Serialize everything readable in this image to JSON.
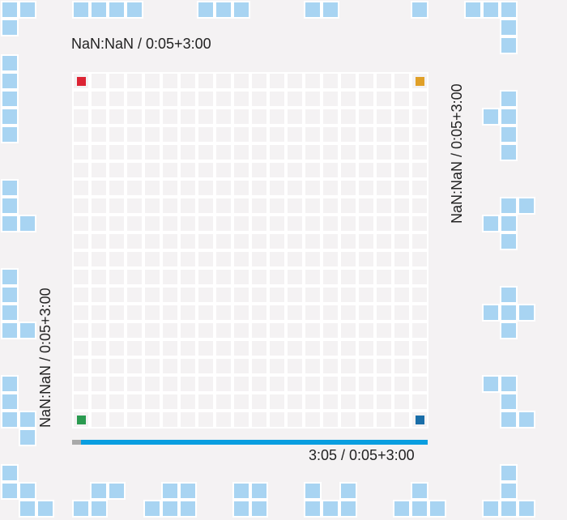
{
  "board": {
    "rows": 20,
    "cols": 20,
    "cell_color": "#f4f2f3",
    "grid_line_color": "#ffffff"
  },
  "corners": [
    {
      "name": "red-corner-marker",
      "color": "#dc2434",
      "row": 0,
      "col": 0
    },
    {
      "name": "orange-corner-marker",
      "color": "#e0a028",
      "row": 0,
      "col": 19
    },
    {
      "name": "green-corner-marker",
      "color": "#2a9a50",
      "row": 19,
      "col": 0
    },
    {
      "name": "blue-corner-marker",
      "color": "#1a6ea8",
      "row": 19,
      "col": 19
    }
  ],
  "timers": {
    "top": "NaN:NaN / 0:05+3:00",
    "right": "NaN:NaN / 0:05+3:00",
    "left": "NaN:NaN / 0:05+3:00",
    "bottom": "3:05 / 0:05+3:00"
  },
  "progress": {
    "fraction_remaining": 0.975,
    "fill_color": "#099ee0",
    "track_color": "#a9a9a9"
  },
  "piece_color": "#a8d4f2"
}
